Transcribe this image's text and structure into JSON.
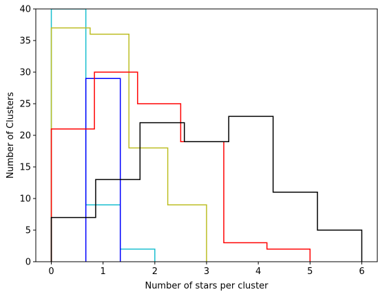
{
  "chart_data": {
    "type": "step-histogram",
    "title": "",
    "xlabel": "Number of stars per cluster",
    "ylabel": "Number of Clusters",
    "xlim": [
      -0.3,
      6.3
    ],
    "ylim": [
      0,
      40
    ],
    "xticks": [
      0,
      1,
      2,
      3,
      4,
      5,
      6
    ],
    "yticks": [
      0,
      5,
      10,
      15,
      20,
      25,
      30,
      35,
      40
    ],
    "grid": false,
    "series": [
      {
        "color": "#17becf",
        "edges": [
          0,
          0.667,
          1.333,
          2.0
        ],
        "counts": [
          40,
          9,
          2
        ]
      },
      {
        "color": "#0000ff",
        "edges": [
          0.667,
          1.333
        ],
        "counts": [
          29
        ]
      },
      {
        "color": "#bcbd22",
        "edges": [
          0,
          0.75,
          1.5,
          2.25,
          3.0
        ],
        "counts": [
          37,
          36,
          18,
          9
        ]
      },
      {
        "color": "#ff0000",
        "edges": [
          0,
          0.833,
          1.667,
          2.5,
          3.333,
          4.167,
          5.0
        ],
        "counts": [
          21,
          30,
          25,
          19,
          3,
          2
        ]
      },
      {
        "color": "#000000",
        "edges": [
          0,
          0.857,
          1.714,
          2.571,
          3.429,
          4.286,
          5.143,
          6.0
        ],
        "counts": [
          7,
          13,
          22,
          19,
          23,
          11,
          5
        ]
      }
    ]
  }
}
